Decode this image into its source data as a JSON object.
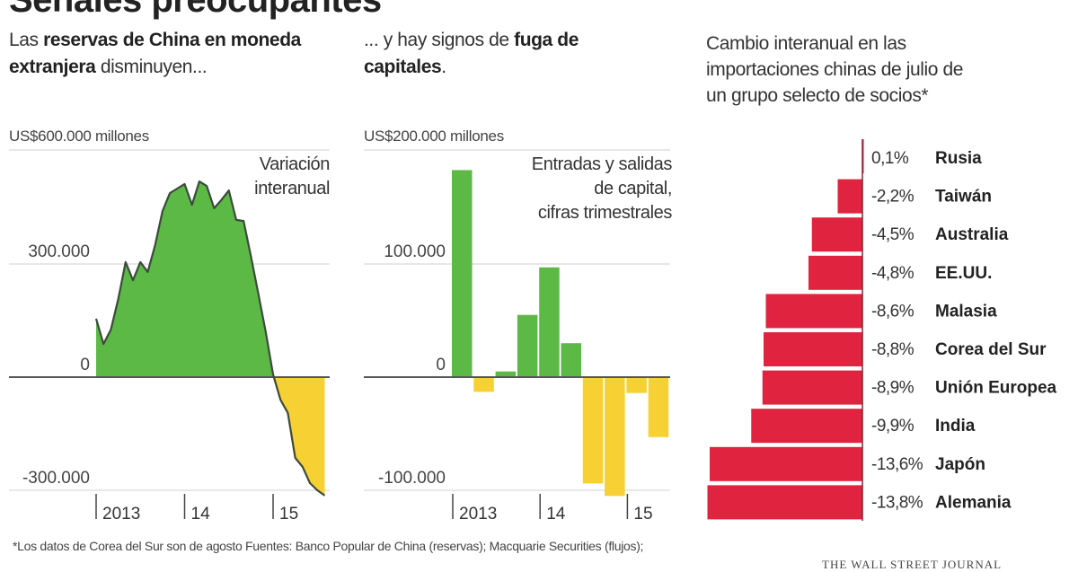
{
  "title": "Señales preocupantes",
  "panel1": {
    "lede_parts": [
      "Las ",
      "reservas de China en moneda extranjera",
      " disminuyen..."
    ],
    "unit": "US$600.000 millones",
    "note": [
      "Variación",
      "interanual"
    ]
  },
  "panel2": {
    "lede_parts": [
      "... y hay signos de ",
      "fuga de capitales",
      "."
    ],
    "unit": "US$200.000 millones",
    "note": [
      "Entradas y salidas",
      "de capital,",
      "cifras trimestrales"
    ]
  },
  "panel3": {
    "lede": [
      "Cambio interanual en las",
      "importaciones chinas de julio de",
      "un grupo selecto de socios*"
    ]
  },
  "footer": {
    "line1": "*Los datos de Corea del Sur son de agosto   Fuentes: Banco Popular de China (reservas); Macquarie Securities (flujos);",
    "logo": "THE WALL STREET JOURNAL"
  },
  "colors": {
    "positive": "#5cb946",
    "negative": "#f7d033",
    "imports": "#e0233e",
    "line": "#3c4a3c",
    "grid": "#d0d0d0",
    "axis": "#555555"
  },
  "chart_data": [
    {
      "type": "area",
      "title": "",
      "ylabel": "US$600.000 millones",
      "ylim": [
        -300000,
        600000
      ],
      "yticks": [
        {
          "v": 300000,
          "label": "300.000"
        },
        {
          "v": 0,
          "label": "0"
        },
        {
          "v": -300000,
          "label": "-300.000"
        }
      ],
      "xticks": [
        {
          "x": "2013-01",
          "label": "2013"
        },
        {
          "x": "2014-01",
          "label": "14"
        },
        {
          "x": "2015-01",
          "label": "15"
        }
      ],
      "x_range": [
        "2013-01",
        "2015-08"
      ],
      "points": [
        [
          "2013-01",
          155000
        ],
        [
          "2013-02",
          88000
        ],
        [
          "2013-03",
          126000
        ],
        [
          "2013-04",
          207000
        ],
        [
          "2013-05",
          305000
        ],
        [
          "2013-06",
          257000
        ],
        [
          "2013-07",
          305000
        ],
        [
          "2013-08",
          279000
        ],
        [
          "2013-09",
          350000
        ],
        [
          "2013-10",
          440000
        ],
        [
          "2013-11",
          488000
        ],
        [
          "2013-12",
          500000
        ],
        [
          "2014-01",
          512000
        ],
        [
          "2014-02",
          457000
        ],
        [
          "2014-03",
          519000
        ],
        [
          "2014-04",
          507000
        ],
        [
          "2014-05",
          448000
        ],
        [
          "2014-06",
          470000
        ],
        [
          "2014-07",
          495000
        ],
        [
          "2014-08",
          417000
        ],
        [
          "2014-09",
          414000
        ],
        [
          "2014-10",
          320000
        ],
        [
          "2014-11",
          221000
        ],
        [
          "2014-12",
          120000
        ],
        [
          "2015-01",
          7000
        ],
        [
          "2015-02",
          -60000
        ],
        [
          "2015-03",
          -95000
        ],
        [
          "2015-04",
          -214000
        ],
        [
          "2015-05",
          -238000
        ],
        [
          "2015-06",
          -281000
        ],
        [
          "2015-07",
          -300000
        ],
        [
          "2015-08",
          -314000
        ]
      ]
    },
    {
      "type": "bar",
      "title": "",
      "ylabel": "US$200.000 millones",
      "ylim": [
        -100000,
        200000
      ],
      "yticks": [
        {
          "v": 100000,
          "label": "100.000"
        },
        {
          "v": 0,
          "label": "0"
        },
        {
          "v": -100000,
          "label": "-100.000"
        }
      ],
      "xticks": [
        {
          "label": "2013",
          "index": 0
        },
        {
          "label": "14",
          "index": 4
        },
        {
          "label": "15",
          "index": 8
        }
      ],
      "categories": [
        "2013 T1",
        "2013 T2",
        "2013 T3",
        "2013 T4",
        "2014 T1",
        "2014 T2",
        "2014 T3",
        "2014 T4",
        "2015 T1",
        "2015 T2"
      ],
      "values": [
        183000,
        -13000,
        5000,
        55000,
        97000,
        30000,
        -94000,
        -105000,
        -14000,
        -53000
      ]
    },
    {
      "type": "bar",
      "orientation": "horizontal",
      "categories": [
        "Rusia",
        "Taiwán",
        "Australia",
        "EE.UU.",
        "Malasia",
        "Corea del Sur",
        "Unión Europea",
        "India",
        "Japón",
        "Alemania"
      ],
      "values": [
        0.1,
        -2.2,
        -4.5,
        -4.8,
        -8.6,
        -8.8,
        -8.9,
        -9.9,
        -13.6,
        -13.8
      ],
      "labels": [
        "0,1%",
        "-2,2%",
        "-4,5%",
        "-4,8%",
        "-8,6%",
        "-8,8%",
        "-8,9%",
        "-9,9%",
        "-13,6%",
        "-13,8%"
      ]
    }
  ]
}
